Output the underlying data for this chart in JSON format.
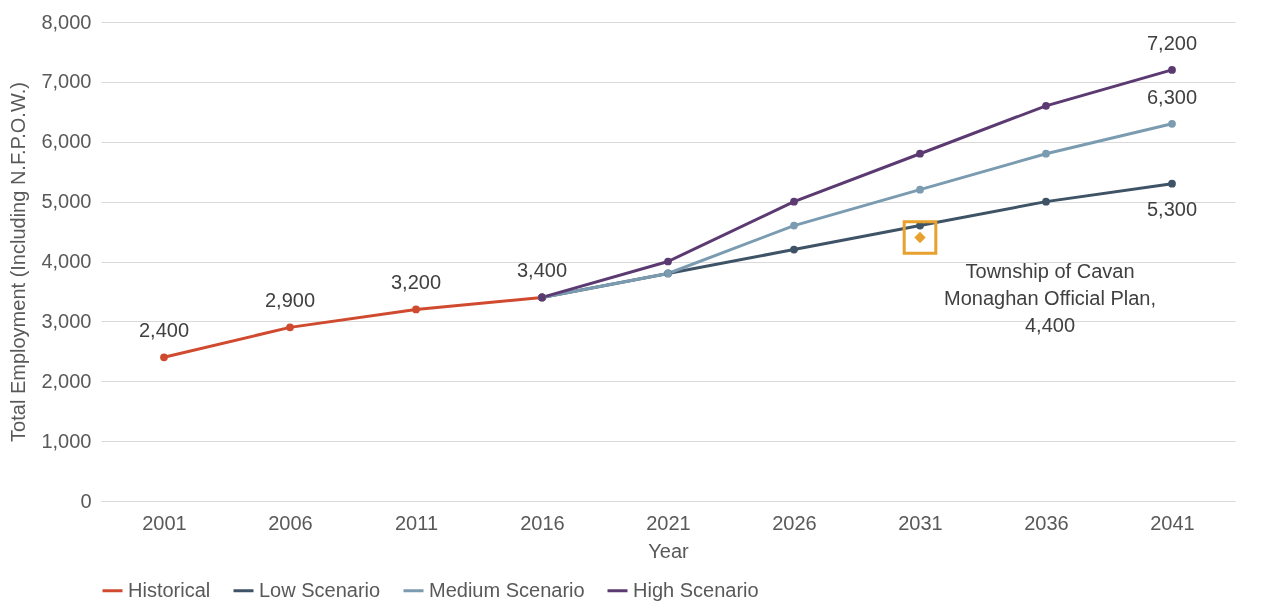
{
  "chart_data": {
    "type": "line",
    "xlabel": "Year",
    "ylabel": "Total Employment (Including N.F.P.O.W.)",
    "categories": [
      "2001",
      "2006",
      "2011",
      "2016",
      "2021",
      "2026",
      "2031",
      "2036",
      "2041"
    ],
    "ylim": [
      0,
      8000
    ],
    "yticks": [
      0,
      {
        "value": 1000,
        "label": "1,000"
      },
      {
        "value": 2000,
        "label": "2,000"
      },
      {
        "value": 3000,
        "label": "3,000"
      },
      {
        "value": 4000,
        "label": "4,000"
      },
      {
        "value": 5000,
        "label": "5,000"
      },
      {
        "value": 6000,
        "label": "6,000"
      },
      {
        "value": 7000,
        "label": "7,000"
      },
      {
        "value": 8000,
        "label": "8,000"
      }
    ],
    "grid": "y",
    "legend": "bottom",
    "marker": "circle",
    "line_style": "solid",
    "series": [
      {
        "name": "Historical",
        "color": "#d04a2f",
        "values": [
          2400,
          2900,
          3200,
          3400,
          null,
          null,
          null,
          null,
          null
        ],
        "value_labels": [
          "2,400",
          "2,900",
          "3,200",
          "3,400",
          null,
          null,
          null,
          null,
          null
        ]
      },
      {
        "name": "Low Scenario",
        "color": "#3e5366",
        "values": [
          null,
          null,
          null,
          3400,
          3800,
          4200,
          4600,
          5000,
          5300
        ],
        "value_labels": [
          null,
          null,
          null,
          null,
          null,
          null,
          null,
          null,
          "5,300"
        ]
      },
      {
        "name": "Medium Scenario",
        "color": "#7a9bb0",
        "values": [
          null,
          null,
          null,
          3400,
          3800,
          4600,
          5200,
          5800,
          6300
        ],
        "value_labels": [
          null,
          null,
          null,
          null,
          null,
          null,
          null,
          null,
          "6,300"
        ]
      },
      {
        "name": "High Scenario",
        "color": "#5b3a72",
        "values": [
          null,
          null,
          null,
          3400,
          4000,
          5000,
          5800,
          6600,
          7200
        ],
        "value_labels": [
          null,
          null,
          null,
          null,
          null,
          null,
          null,
          null,
          "7,200"
        ]
      },
      {
        "type": "scatter",
        "color": "#e8a02f",
        "marker": "diamond",
        "values": [
          null,
          null,
          null,
          null,
          null,
          null,
          4400,
          null,
          null
        ]
      }
    ],
    "annotations": [
      {
        "text": "Township of Cavan Monaghan Official Plan, 4,400",
        "x": "2031",
        "y": 4400
      }
    ]
  }
}
